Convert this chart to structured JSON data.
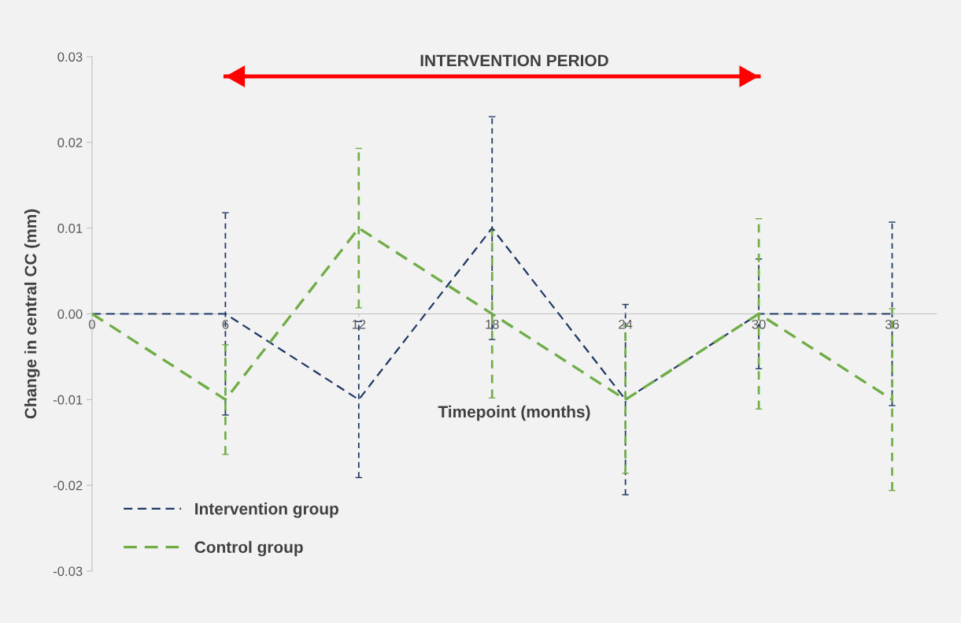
{
  "chart_data": {
    "type": "line",
    "xlabel": "Timepoint (months)",
    "ylabel": "Change in central CC (mm)",
    "x": [
      0,
      6,
      12,
      18,
      24,
      30,
      36
    ],
    "xlim": [
      0,
      38
    ],
    "xticks": [
      0,
      6,
      12,
      18,
      24,
      30,
      36
    ],
    "ylim": [
      -0.03,
      0.03
    ],
    "yticks": [
      {
        "value": -0.03,
        "label": "-0.03"
      },
      {
        "value": -0.02,
        "label": "-0.02"
      },
      {
        "value": -0.01,
        "label": "-0.01"
      },
      {
        "value": 0,
        "label": "0.00"
      },
      {
        "value": 0.01,
        "label": "0.01"
      },
      {
        "value": 0.02,
        "label": "0.02"
      },
      {
        "value": 0.03,
        "label": "0.03"
      }
    ],
    "series": [
      {
        "name": "Intervention group",
        "color": "#1f3864",
        "values": [
          0,
          0,
          -0.01,
          0.01,
          -0.01,
          0,
          0
        ],
        "errors": [
          null,
          0.0118,
          0.0091,
          0.013,
          0.0111,
          0.0064,
          0.0107
        ]
      },
      {
        "name": "Control group",
        "color": "#70ad47",
        "values": [
          0,
          -0.01,
          0.01,
          0,
          -0.01,
          0,
          -0.01
        ],
        "errors": [
          null,
          0.0064,
          0.0093,
          0.0098,
          0.0086,
          0.0111,
          0.0106
        ]
      },
      {
        "type": "line",
        "line_style": "solid",
        "color": "#ff0000",
        "x": [
          6,
          30
        ],
        "values": [
          0.0277,
          0.0277
        ]
      }
    ],
    "annotations": [
      "INTERVENTION PERIOD"
    ],
    "line_style": "dashed",
    "marker": "none",
    "grid": false,
    "legend": "bottom left"
  }
}
